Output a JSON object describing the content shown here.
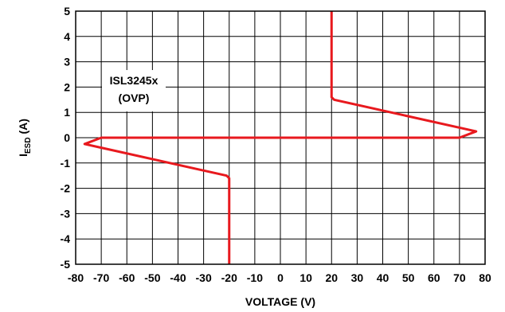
{
  "chart_data": {
    "type": "line",
    "xlabel": "VOLTAGE (V)",
    "ylabel_main": "I",
    "ylabel_sub": "ESD",
    "ylabel_unit": " (A)",
    "xlim": [
      -80,
      80
    ],
    "ylim": [
      -5,
      5
    ],
    "x_ticks": [
      -80,
      -70,
      -60,
      -50,
      -40,
      -30,
      -20,
      -10,
      0,
      10,
      20,
      30,
      40,
      50,
      60,
      70,
      80
    ],
    "y_ticks": [
      -5,
      -4,
      -3,
      -2,
      -1,
      0,
      1,
      2,
      3,
      4,
      5
    ],
    "grid": true,
    "annotation": [
      "ISL3245x",
      "(OVP)"
    ],
    "series": [
      {
        "color": "#e8191e",
        "points": [
          [
            20,
            5
          ],
          [
            20,
            1.6
          ],
          [
            21,
            1.5
          ],
          [
            76.5,
            0.25
          ],
          [
            70,
            0
          ],
          [
            -70,
            0
          ],
          [
            -76.5,
            -0.25
          ],
          [
            -21,
            -1.5
          ],
          [
            -20,
            -1.6
          ],
          [
            -20,
            -5
          ]
        ]
      }
    ]
  }
}
